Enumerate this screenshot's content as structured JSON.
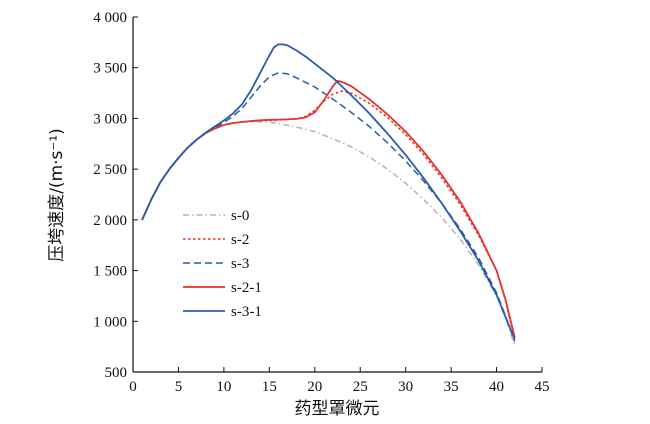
{
  "chart_data": {
    "type": "line",
    "xlabel": "药型罩微元",
    "ylabel": "压垮速度/(m·s⁻¹)",
    "xlim": [
      0,
      45
    ],
    "ylim": [
      500,
      4000
    ],
    "x_ticks": [
      0,
      5,
      10,
      15,
      20,
      25,
      30,
      35,
      40,
      45
    ],
    "x_tick_labels": [
      "0",
      "5",
      "10",
      "15",
      "20",
      "25",
      "30",
      "35",
      "40",
      "45"
    ],
    "y_ticks": [
      500,
      1000,
      1500,
      2000,
      2500,
      3000,
      3500,
      4000
    ],
    "y_tick_labels": [
      "500",
      "1 000",
      "1 500",
      "2 000",
      "2 500",
      "3 000",
      "3 500",
      "4 000"
    ],
    "grid": false,
    "legend_position": "left-center",
    "series": [
      {
        "name": "s-0",
        "color": "#b4b4b4",
        "dash": "dashdot",
        "x": [
          1,
          2,
          3,
          4,
          5,
          6,
          7,
          8,
          9,
          10,
          11,
          12,
          13,
          14,
          15,
          16,
          18,
          20,
          22,
          24,
          26,
          28,
          30,
          32,
          34,
          36,
          38,
          40,
          41,
          42
        ],
        "y": [
          2000,
          2200,
          2370,
          2500,
          2610,
          2710,
          2790,
          2855,
          2900,
          2935,
          2955,
          2965,
          2968,
          2968,
          2965,
          2950,
          2915,
          2870,
          2800,
          2720,
          2620,
          2500,
          2360,
          2200,
          2020,
          1810,
          1560,
          1250,
          1030,
          760
        ]
      },
      {
        "name": "s-2",
        "color": "#e8322c",
        "dash": "dot",
        "x": [
          1,
          2,
          3,
          4,
          5,
          6,
          7,
          8,
          9,
          10,
          11,
          12,
          13,
          14,
          15,
          16,
          17,
          18,
          19,
          20,
          21,
          22,
          23,
          24,
          26,
          28,
          30,
          32,
          34,
          36,
          38,
          40,
          41,
          42
        ],
        "y": [
          2000,
          2200,
          2370,
          2500,
          2610,
          2710,
          2790,
          2855,
          2900,
          2935,
          2955,
          2965,
          2972,
          2978,
          2982,
          2985,
          2990,
          2995,
          3020,
          3080,
          3170,
          3240,
          3270,
          3250,
          3150,
          3010,
          2840,
          2640,
          2410,
          2150,
          1850,
          1500,
          1200,
          820
        ]
      },
      {
        "name": "s-3",
        "color": "#2a5caa",
        "dash": "dash",
        "x": [
          1,
          2,
          3,
          4,
          5,
          6,
          7,
          8,
          9,
          10,
          11,
          12,
          13,
          14,
          15,
          16,
          17,
          18,
          20,
          22,
          24,
          26,
          28,
          30,
          32,
          34,
          36,
          38,
          40,
          41,
          42
        ],
        "y": [
          2000,
          2200,
          2370,
          2500,
          2610,
          2710,
          2790,
          2855,
          2910,
          2960,
          3020,
          3100,
          3210,
          3320,
          3410,
          3450,
          3440,
          3400,
          3310,
          3190,
          3060,
          2920,
          2760,
          2580,
          2380,
          2160,
          1910,
          1630,
          1280,
          1050,
          800
        ]
      },
      {
        "name": "s-2-1",
        "color": "#e8322c",
        "dash": "solid",
        "x": [
          1,
          2,
          3,
          4,
          5,
          6,
          7,
          8,
          9,
          10,
          11,
          12,
          13,
          14,
          15,
          16,
          17,
          18,
          19,
          20,
          21,
          22,
          22.5,
          23,
          24,
          26,
          28,
          30,
          32,
          34,
          36,
          38,
          40,
          41,
          42
        ],
        "y": [
          2000,
          2200,
          2370,
          2500,
          2610,
          2710,
          2790,
          2855,
          2900,
          2935,
          2955,
          2965,
          2975,
          2982,
          2986,
          2988,
          2990,
          2995,
          3010,
          3060,
          3180,
          3320,
          3370,
          3360,
          3320,
          3190,
          3040,
          2870,
          2670,
          2440,
          2180,
          1870,
          1500,
          1210,
          840
        ]
      },
      {
        "name": "s-3-1",
        "color": "#2a5caa",
        "dash": "solid",
        "x": [
          1,
          2,
          3,
          4,
          5,
          6,
          7,
          8,
          9,
          10,
          11,
          12,
          13,
          14,
          15,
          15.5,
          16,
          16.5,
          17,
          18,
          19,
          20,
          22,
          24,
          26,
          28,
          30,
          32,
          34,
          36,
          38,
          40,
          41,
          42
        ],
        "y": [
          2000,
          2200,
          2370,
          2500,
          2610,
          2710,
          2790,
          2860,
          2920,
          2980,
          3050,
          3140,
          3280,
          3450,
          3620,
          3700,
          3730,
          3730,
          3720,
          3670,
          3610,
          3540,
          3400,
          3230,
          3050,
          2850,
          2640,
          2410,
          2160,
          1890,
          1600,
          1260,
          1040,
          820
        ]
      }
    ]
  }
}
